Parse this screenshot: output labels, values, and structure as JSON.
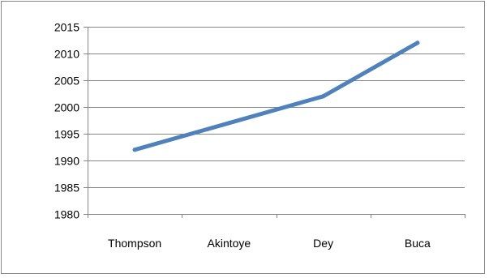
{
  "chart_data": {
    "type": "line",
    "title": "",
    "xlabel": "",
    "ylabel": "",
    "categories": [
      "Thompson",
      "Akintoye",
      "Dey",
      "Buca"
    ],
    "series": [
      {
        "values": [
          1992,
          1997,
          2002,
          2012
        ],
        "color": "#4f81bd"
      }
    ],
    "ylim": [
      1980,
      2015
    ],
    "yticks": [
      1980,
      1985,
      1990,
      1995,
      2000,
      2005,
      2010,
      2015
    ],
    "grid": true,
    "legend": "none",
    "colors": {
      "gridline": "#868686",
      "axis": "#868686",
      "frame": "#868686"
    }
  }
}
